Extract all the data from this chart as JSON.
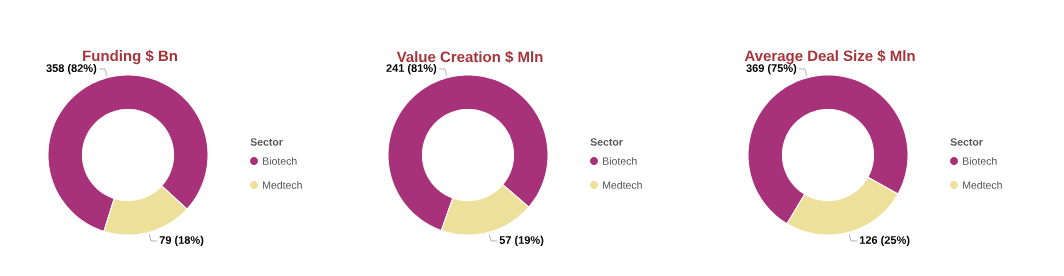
{
  "chart_data": [
    {
      "type": "donut",
      "title": "Funding $ Bn",
      "categories": [
        "Biotech",
        "Medtech"
      ],
      "values": [
        358,
        79
      ],
      "colors": [
        "#a8327a",
        "#ede09a"
      ],
      "value_labels": [
        "358 (82%)",
        "79 (18%)"
      ],
      "legend_title": "Sector",
      "legend": "right"
    },
    {
      "type": "donut",
      "title": "Value Creation $ Mln",
      "categories": [
        "Biotech",
        "Medtech"
      ],
      "values": [
        241,
        57
      ],
      "colors": [
        "#a8327a",
        "#ede09a"
      ],
      "value_labels": [
        "241 (81%)",
        "57 (19%)"
      ],
      "legend_title": "Sector",
      "legend": "right"
    },
    {
      "type": "donut",
      "title": "Average Deal Size $ Mln",
      "categories": [
        "Biotech",
        "Medtech"
      ],
      "values": [
        369,
        126
      ],
      "colors": [
        "#a8327a",
        "#ede09a"
      ],
      "value_labels": [
        "369 (75%)",
        "126 (25%)"
      ],
      "legend_title": "Sector",
      "legend": "right"
    }
  ]
}
